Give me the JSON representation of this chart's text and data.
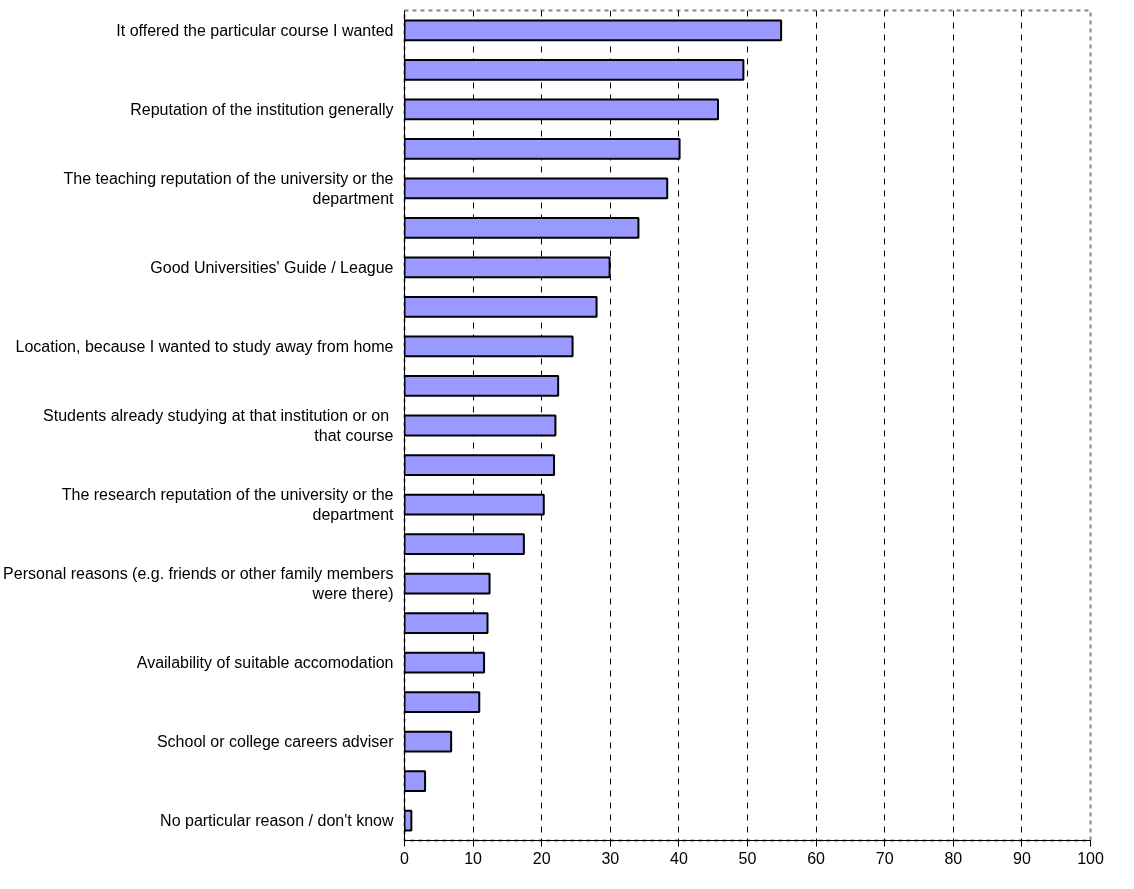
{
  "chart_data": {
    "type": "bar",
    "orientation": "horizontal",
    "categories": [
      "It offered the particular course I wanted",
      null,
      "Reputation of the institution generally",
      null,
      "The teaching reputation of the university or the department",
      null,
      "Good Universities' Guide / League",
      null,
      "Location, because I wanted to study away from home",
      null,
      "Students already studying at  that institution or on that course",
      null,
      "The research reputation of the university or the department",
      null,
      "Personal reasons (e.g. friends or other family members were there)",
      null,
      "Availability of suitable accomodation",
      null,
      "School or college careers adviser",
      null,
      "No particular reason / don't know"
    ],
    "values": [
      54.9,
      49.4,
      45.7,
      40.1,
      38.3,
      34.1,
      29.9,
      28.0,
      24.5,
      22.4,
      22.0,
      21.8,
      20.3,
      17.4,
      12.4,
      12.1,
      11.6,
      10.9,
      6.8,
      3.0,
      1.0
    ],
    "color": "#9999ff",
    "xlim": [
      0,
      100
    ],
    "xticks": [
      0,
      10,
      20,
      30,
      40,
      50,
      60,
      70,
      80,
      90,
      100
    ],
    "grid": "x"
  }
}
